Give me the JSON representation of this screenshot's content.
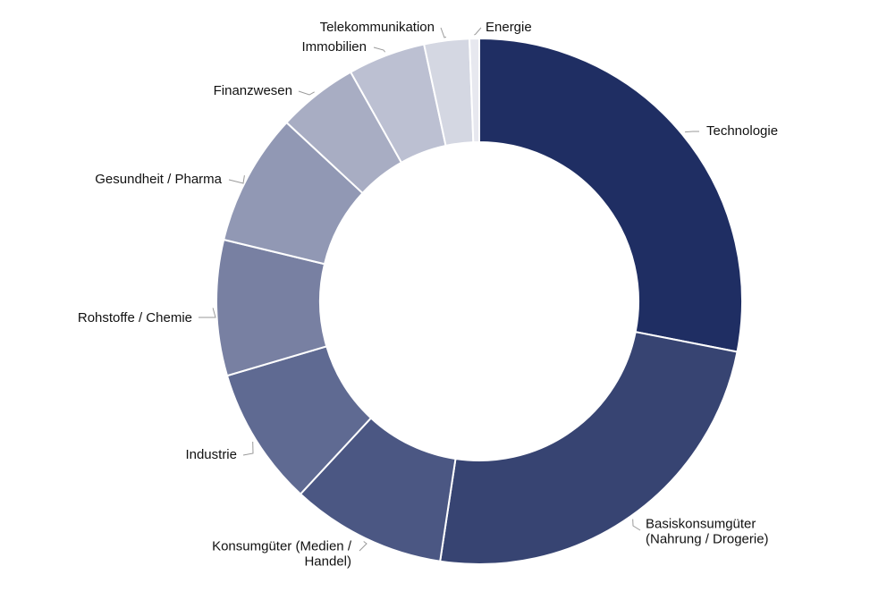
{
  "chart_data": {
    "type": "pie",
    "donut": true,
    "title": "",
    "legend": "none",
    "categories": [
      "Technologie",
      "Basiskonsumgüter (Nahrung / Drogerie)",
      "Konsumgüter (Medien / Handel)",
      "Industrie",
      "Rohstoffe / Chemie",
      "Gesundheit / Pharma",
      "Finanzwesen",
      "Immobilien",
      "Telekommunikation",
      "Energie"
    ],
    "label_lines": [
      [
        "Technologie"
      ],
      [
        "Basiskonsumgüter",
        "(Nahrung / Drogerie)"
      ],
      [
        "Konsumgüter (Medien /",
        "Handel)"
      ],
      [
        "Industrie"
      ],
      [
        "Rohstoffe / Chemie"
      ],
      [
        "Gesundheit / Pharma"
      ],
      [
        "Finanzwesen"
      ],
      [
        "Immobilien"
      ],
      [
        "Telekommunikation"
      ],
      [
        "Energie"
      ]
    ],
    "values": [
      28.3,
      24.5,
      9.6,
      8.6,
      8.4,
      8.2,
      5.0,
      4.8,
      2.8,
      0.6
    ],
    "colors": [
      "#1f2e63",
      "#374472",
      "#4b5783",
      "#5f6a92",
      "#7880a2",
      "#9198b4",
      "#a8adc3",
      "#bcc0d2",
      "#d4d7e2",
      "#e7e8ef"
    ]
  }
}
